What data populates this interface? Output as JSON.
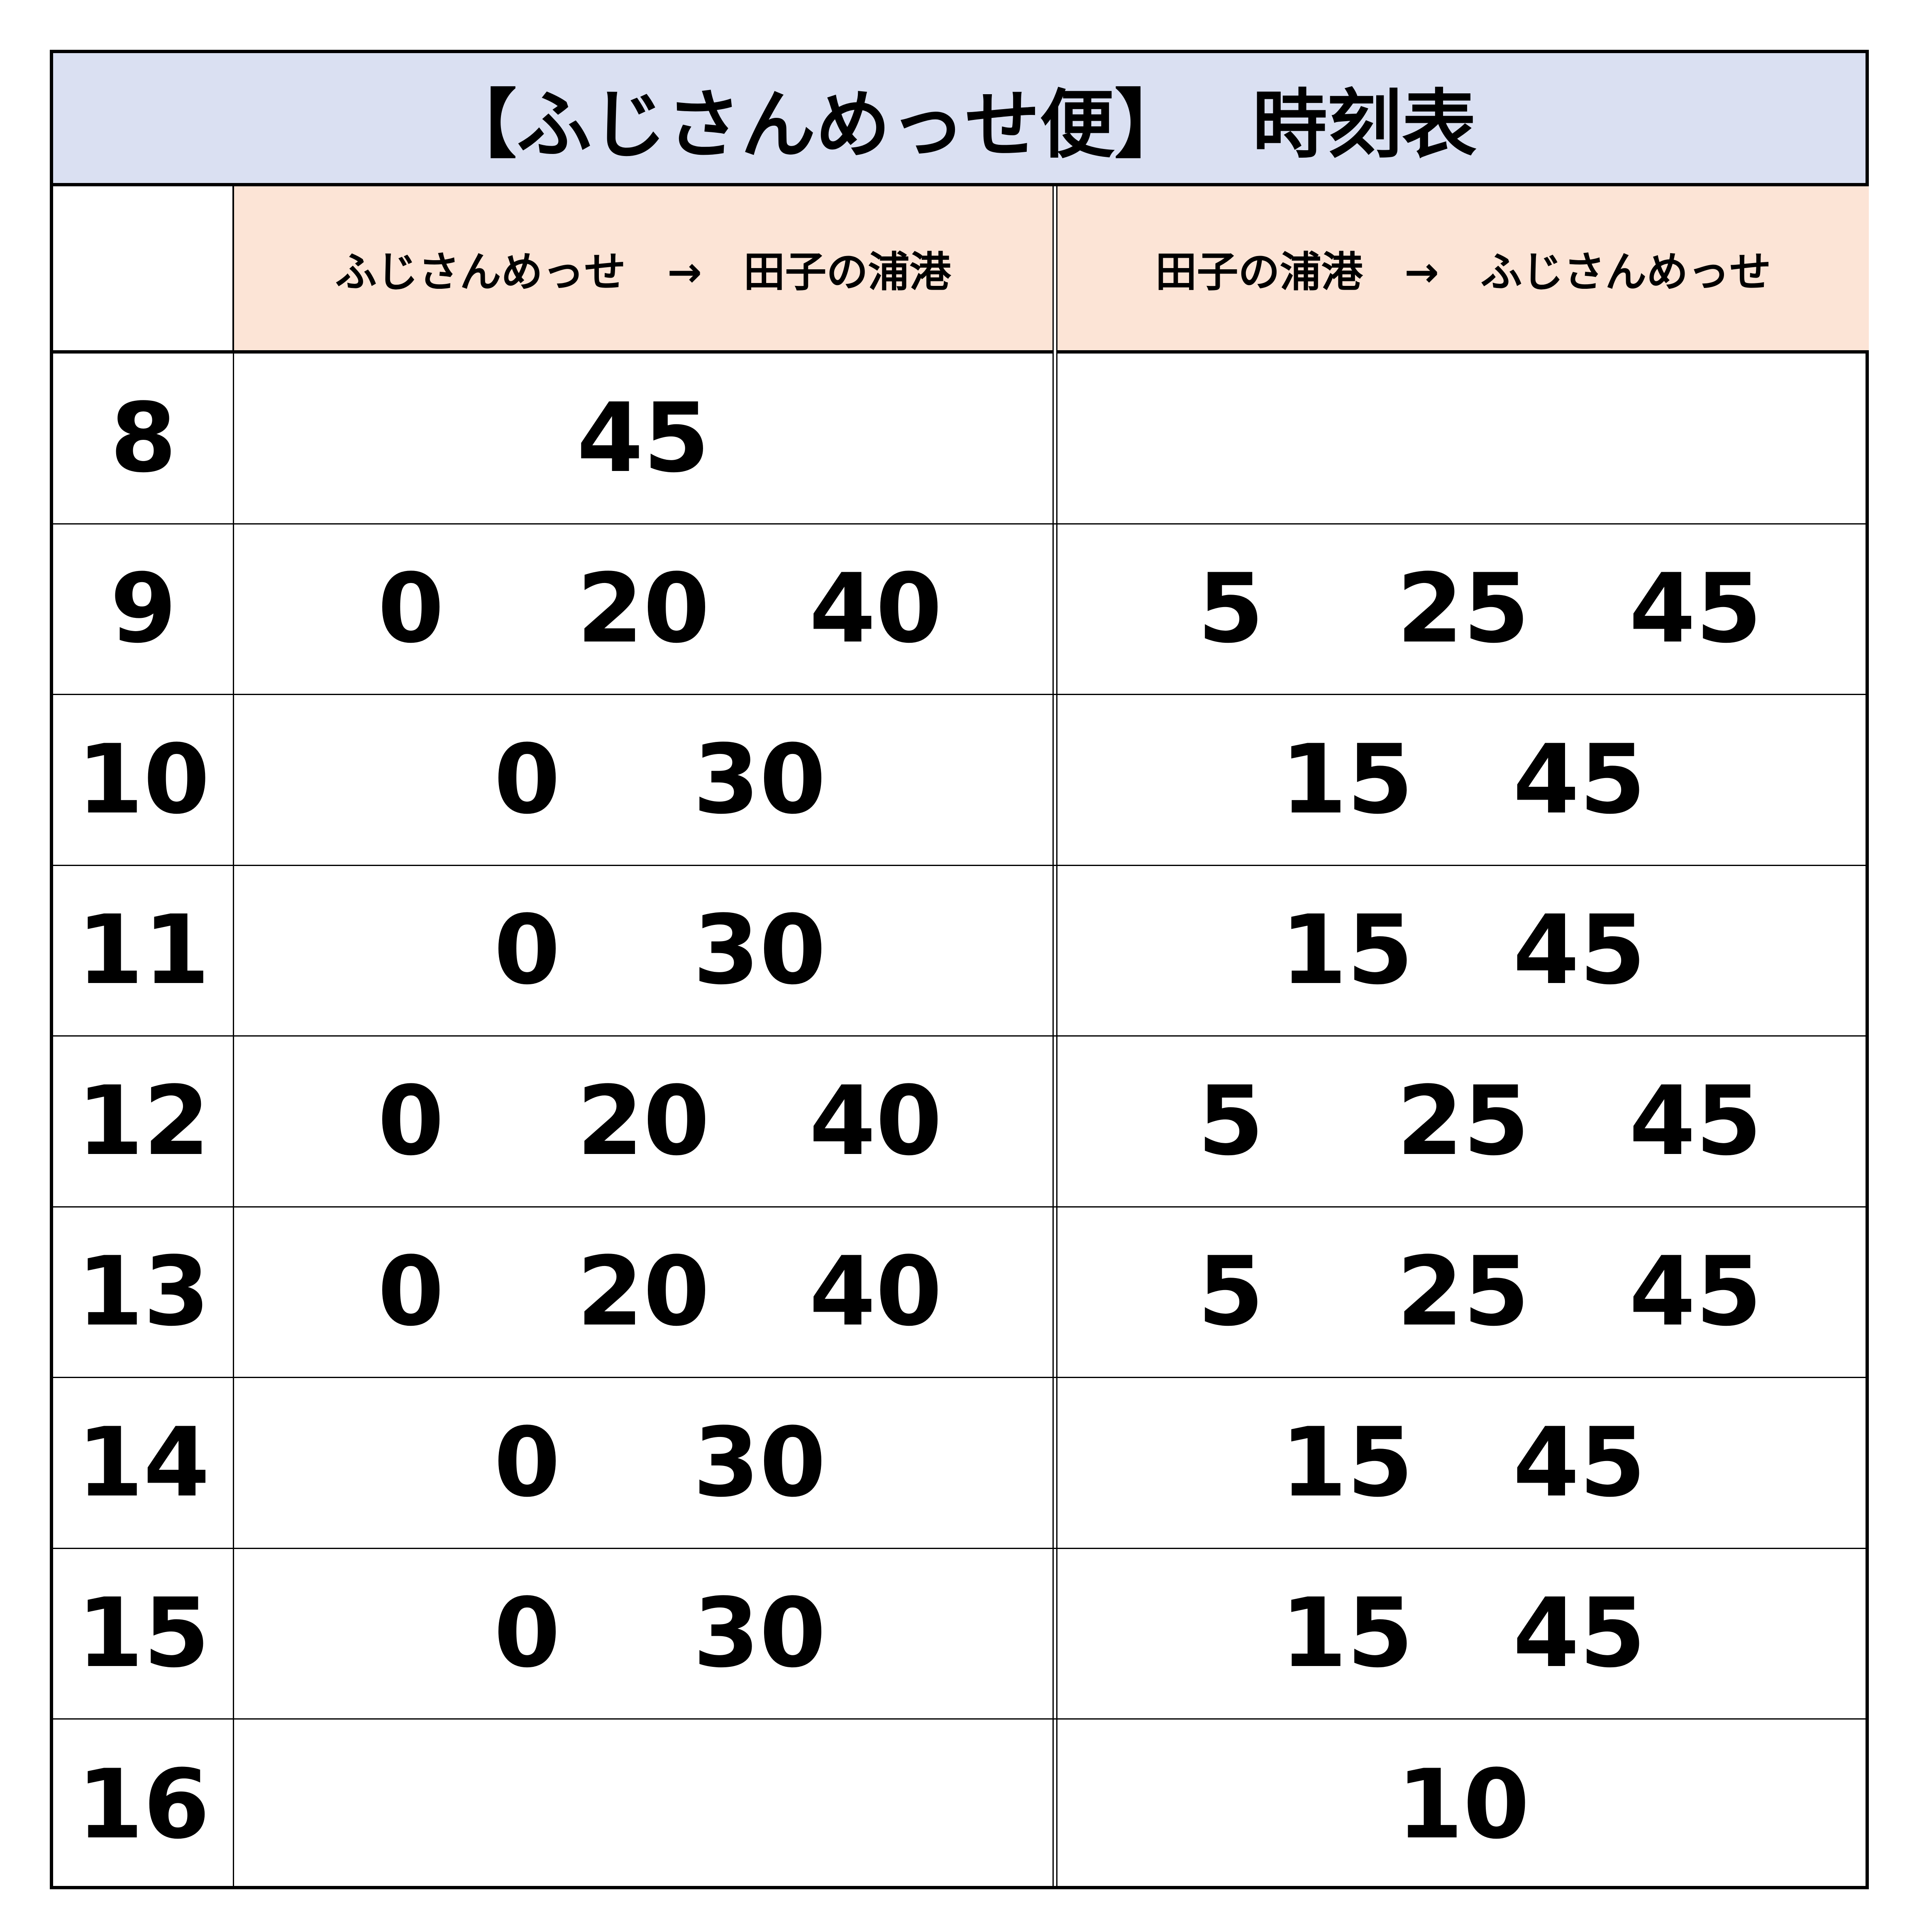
{
  "title": "【ふじさんめっせ便】　 時刻表",
  "headers": {
    "outbound": "ふじさんめっせ　→　田子の浦港",
    "return": "田子の浦港　→　ふじさんめっせ"
  },
  "colors": {
    "title_bg": "#dae0f2",
    "header_bg": "#fce4d6"
  },
  "rows": [
    {
      "hour": "8",
      "out": [
        "45"
      ],
      "ret": []
    },
    {
      "hour": "9",
      "out": [
        "0",
        "20",
        "40"
      ],
      "ret": [
        "5",
        "25",
        "45"
      ]
    },
    {
      "hour": "10",
      "out": [
        "0",
        "30"
      ],
      "ret": [
        "15",
        "45"
      ]
    },
    {
      "hour": "11",
      "out": [
        "0",
        "30"
      ],
      "ret": [
        "15",
        "45"
      ]
    },
    {
      "hour": "12",
      "out": [
        "0",
        "20",
        "40"
      ],
      "ret": [
        "5",
        "25",
        "45"
      ]
    },
    {
      "hour": "13",
      "out": [
        "0",
        "20",
        "40"
      ],
      "ret": [
        "5",
        "25",
        "45"
      ]
    },
    {
      "hour": "14",
      "out": [
        "0",
        "30"
      ],
      "ret": [
        "15",
        "45"
      ]
    },
    {
      "hour": "15",
      "out": [
        "0",
        "30"
      ],
      "ret": [
        "15",
        "45"
      ]
    },
    {
      "hour": "16",
      "out": [],
      "ret": [
        "10"
      ]
    }
  ]
}
